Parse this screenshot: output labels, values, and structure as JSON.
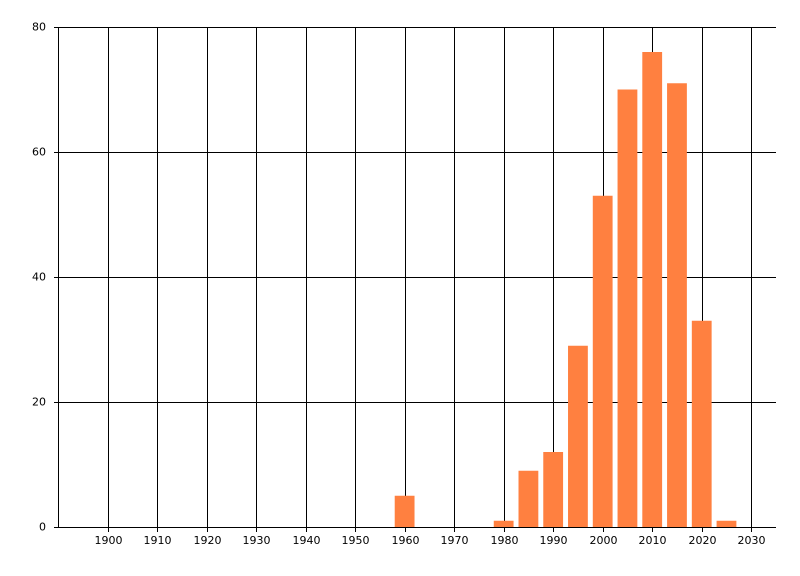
{
  "chart_data": {
    "type": "bar",
    "x": [
      1960,
      1980,
      1985,
      1990,
      1995,
      2000,
      2005,
      2010,
      2015,
      2020,
      2025
    ],
    "values": [
      5,
      1,
      9,
      12,
      29,
      53,
      70,
      76,
      71,
      33,
      1
    ],
    "color": "#ff8040",
    "xlim": [
      1890,
      2035
    ],
    "xticks": [
      1900,
      1910,
      1920,
      1930,
      1940,
      1950,
      1960,
      1970,
      1980,
      1990,
      2000,
      2010,
      2020,
      2030
    ],
    "ylim": [
      0,
      80
    ],
    "yticks": [
      0,
      20,
      40,
      60,
      80
    ],
    "grid": true
  }
}
